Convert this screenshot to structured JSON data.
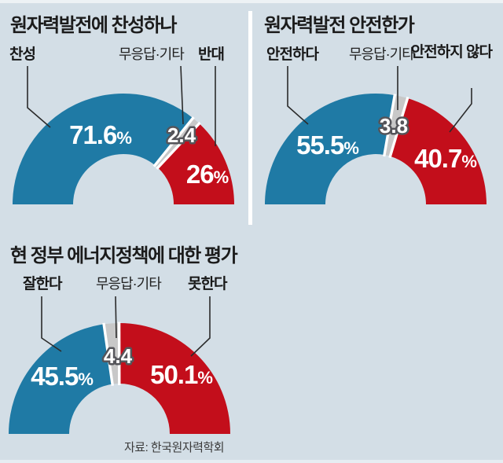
{
  "source_note": "자료: 한국원자력학회",
  "palette": {
    "background": "#d3dee6",
    "agree_blue": "#1f7aa5",
    "oppose_red": "#c30e1b",
    "neutral_gray": "#c8c8c8",
    "divider_white": "#ffffff"
  },
  "chart_data": [
    {
      "type": "pie",
      "subtype": "semi-donut",
      "title": "원자력발전에 찬성하나",
      "categories": [
        "찬성",
        "무응답·기타",
        "반대"
      ],
      "values": [
        71.6,
        2.4,
        26
      ],
      "value_labels": [
        "71.6",
        "2.4",
        "26"
      ],
      "units": [
        "%",
        "",
        "%"
      ],
      "colors": [
        "#1f7aa5",
        "#c8c8c8",
        "#c30e1b"
      ],
      "start_angle": 180,
      "end_angle": 0,
      "legend_position": "above",
      "annotation_style": "leader-lines"
    },
    {
      "type": "pie",
      "subtype": "semi-donut",
      "title": "원자력발전 안전한가",
      "categories": [
        "안전하다",
        "무응답·기타",
        "안전하지 않다"
      ],
      "values": [
        55.5,
        3.8,
        40.7
      ],
      "value_labels": [
        "55.5",
        "3.8",
        "40.7"
      ],
      "units": [
        "%",
        "",
        "%"
      ],
      "colors": [
        "#1f7aa5",
        "#c8c8c8",
        "#c30e1b"
      ],
      "start_angle": 180,
      "end_angle": 0,
      "legend_position": "above",
      "annotation_style": "leader-lines"
    },
    {
      "type": "pie",
      "subtype": "semi-donut",
      "title": "현 정부 에너지정책에 대한 평가",
      "categories": [
        "잘한다",
        "무응답·기타",
        "못한다"
      ],
      "values": [
        45.5,
        4.4,
        50.1
      ],
      "value_labels": [
        "45.5",
        "4.4",
        "50.1"
      ],
      "units": [
        "%",
        "",
        "%"
      ],
      "colors": [
        "#1f7aa5",
        "#c8c8c8",
        "#c30e1b"
      ],
      "start_angle": 180,
      "end_angle": 0,
      "legend_position": "above",
      "annotation_style": "leader-lines"
    }
  ]
}
